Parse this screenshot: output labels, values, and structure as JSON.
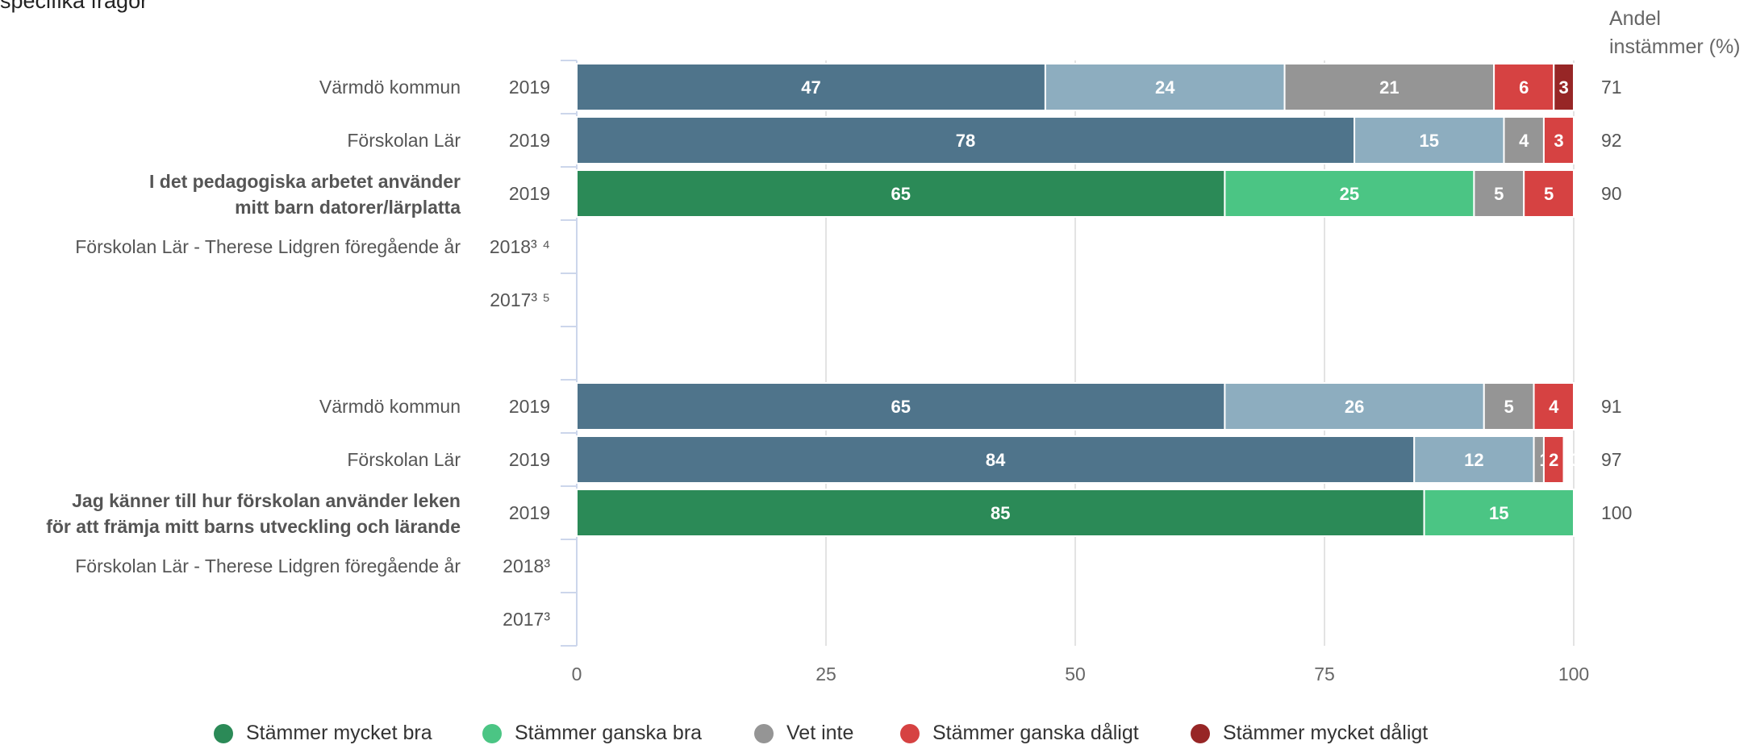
{
  "heading": {
    "title_fragment": "specifika frågor",
    "share_label_line1": "Andel",
    "share_label_line2": "instämmer (%)"
  },
  "colors": {
    "very_good": "#2b8a57",
    "fairly_good": "#4bc584",
    "dont_know": "#959595",
    "fairly_bad": "#d64242",
    "very_bad": "#972626",
    "muni_very_good": "#4f748b",
    "muni_fairly_good": "#8dadbf"
  },
  "legend": [
    {
      "label": "Stämmer mycket bra",
      "color": "#2b8a57"
    },
    {
      "label": "Stämmer ganska bra",
      "color": "#4bc584"
    },
    {
      "label": "Vet inte",
      "color": "#959595"
    },
    {
      "label": "Stämmer ganska dåligt",
      "color": "#d64242"
    },
    {
      "label": "Stämmer mycket dåligt",
      "color": "#972626"
    }
  ],
  "chart_data": {
    "type": "bar",
    "orientation": "horizontal",
    "stacked": true,
    "xlim": [
      0,
      100
    ],
    "xticks": [
      "0",
      "25",
      "50",
      "75",
      "100"
    ],
    "grid": true,
    "legend_position": "bottom",
    "series_names": [
      "Stämmer mycket bra",
      "Stämmer ganska bra",
      "Vet inte",
      "Stämmer ganska dåligt",
      "Stämmer mycket dåligt"
    ],
    "groups": [
      {
        "question": "I det pedagogiska arbetet använder mitt barn datorer/lärplatta",
        "rows": [
          {
            "label": "Värmdö kommun",
            "year": "2019",
            "values": [
              47,
              24,
              21,
              6,
              3
            ],
            "data_labels": [
              "47",
              "24",
              "21",
              "6",
              "3"
            ],
            "palette": "muni",
            "share": "71"
          },
          {
            "label": "Förskolan Lär",
            "year": "2019",
            "values": [
              78,
              15,
              4,
              3,
              0.1
            ],
            "data_labels": [
              "78",
              "15",
              "4",
              "3",
              "0"
            ],
            "palette": "muni",
            "share": "92"
          },
          {
            "label": "I det pedagogiska arbetet använder mitt barn datorer/lärplatta",
            "year": "2019",
            "values": [
              65,
              25,
              5,
              5,
              0.1
            ],
            "data_labels": [
              "65",
              "25",
              "5",
              "5",
              "0"
            ],
            "palette": "unit",
            "share": "90",
            "question_row": true
          },
          {
            "label": "Förskolan Lär - Therese Lidgren föregående år",
            "year": "2018³ ⁴",
            "values": [],
            "share": ""
          },
          {
            "label": "",
            "year": "2017³ ⁵",
            "values": [],
            "share": ""
          }
        ]
      },
      {
        "question": "Jag känner till hur förskolan använder leken för att främja mitt barns utveckling och lärande",
        "rows": [
          {
            "label": "Värmdö kommun",
            "year": "2019",
            "values": [
              65,
              26,
              5,
              4,
              1
            ],
            "data_labels": [
              "65",
              "26",
              "5",
              "4",
              "1"
            ],
            "palette": "muni",
            "share": "91"
          },
          {
            "label": "Förskolan Lär",
            "year": "2019",
            "values": [
              84,
              12,
              1,
              2,
              0.1
            ],
            "data_labels": [
              "84",
              "12",
              "1",
              "2",
              "0"
            ],
            "palette": "muni",
            "share": "97"
          },
          {
            "label": "Jag känner till hur förskolan använder leken för att främja mitt barns utveckling och lärande",
            "year": "2019",
            "values": [
              85,
              15,
              0.1,
              0,
              0
            ],
            "data_labels": [
              "85",
              "15",
              "0",
              "",
              ""
            ],
            "palette": "unit",
            "share": "100",
            "question_row": true
          },
          {
            "label": "Förskolan Lär - Therese Lidgren föregående år",
            "year": "2018³",
            "values": [],
            "share": ""
          },
          {
            "label": "",
            "year": "2017³",
            "values": [],
            "share": ""
          }
        ]
      }
    ]
  }
}
